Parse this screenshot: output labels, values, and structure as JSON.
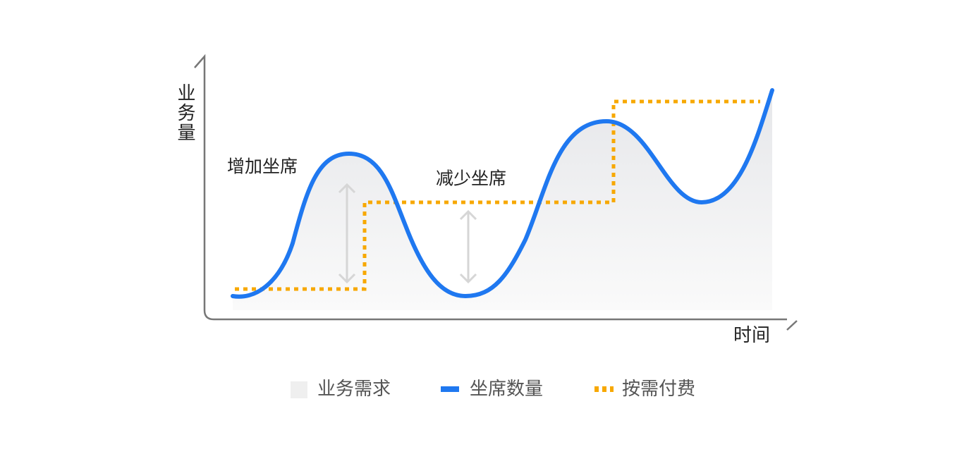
{
  "axes": {
    "y_label": "业务量",
    "x_label": "时间"
  },
  "annotations": [
    "增加坐席",
    "减少坐席"
  ],
  "legend": [
    "业务需求",
    "坐席数量",
    "按需付费"
  ]
}
